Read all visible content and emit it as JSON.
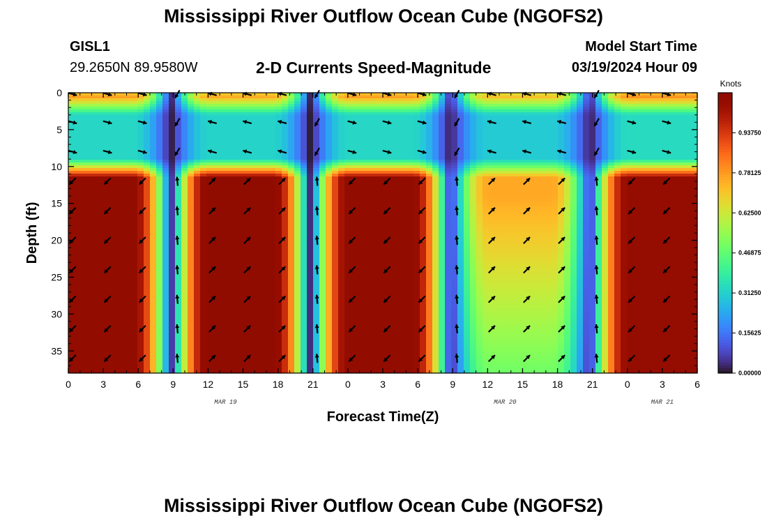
{
  "header": {
    "title": "Mississippi River Outflow Ocean Cube (NGOFS2)",
    "station_id": "GISL1",
    "station_coords": "29.2650N  89.9580W",
    "subtitle": "2-D Currents Speed-Magnitude",
    "model_start_label": "Model Start Time",
    "model_start_value": "03/19/2024 Hour 09"
  },
  "footer": {
    "title": "Mississippi River Outflow Ocean Cube (NGOFS2)"
  },
  "chart_data": {
    "type": "heatmap",
    "xlabel": "Forecast Time(Z)",
    "ylabel": "Depth (ft)",
    "x_tick_labels": [
      "0",
      "3",
      "6",
      "9",
      "12",
      "15",
      "18",
      "21",
      "0",
      "3",
      "6",
      "9",
      "12",
      "15",
      "18",
      "21",
      "0",
      "3",
      "6"
    ],
    "day_labels": [
      "MAR 19",
      "MAR 20",
      "MAR 21"
    ],
    "xlim_hours": [
      0,
      54
    ],
    "y_ticks": [
      0,
      5,
      10,
      15,
      20,
      25,
      30,
      35
    ],
    "y_tick_labels": [
      "0",
      "5",
      "10",
      "15",
      "20",
      "25",
      "30",
      "35"
    ],
    "ylim_ft": [
      0,
      38
    ],
    "y_inverted": true,
    "colorbar": {
      "unit": "Knots",
      "range": [
        0,
        1.09375
      ],
      "ticks": [
        "0.00000",
        "0.15625",
        "0.31250",
        "0.46875",
        "0.62500",
        "0.78125",
        "0.93750"
      ],
      "colormap": "turbo"
    },
    "max_speed_bottom_layer": [
      1.07,
      1.09,
      1.07,
      0.76,
      1.06
    ],
    "max_speed_near_surface": [
      0.78,
      0.76,
      0.78,
      0.72,
      0.8
    ],
    "slack_times_hours": [
      8.8,
      20.8,
      32.8,
      44.8
    ],
    "bottom_layer_top_ft": 10.5,
    "direction_samples_hours": [
      0,
      3,
      6,
      9,
      12,
      15,
      18,
      21,
      24,
      27,
      30,
      33,
      36,
      39,
      42,
      45,
      48,
      51
    ],
    "direction_samples_depth_ft": [
      0,
      4,
      8,
      12,
      16,
      20,
      24,
      28,
      32,
      36
    ]
  },
  "colors": {
    "arrow": "#000000",
    "frame": "#000000"
  }
}
